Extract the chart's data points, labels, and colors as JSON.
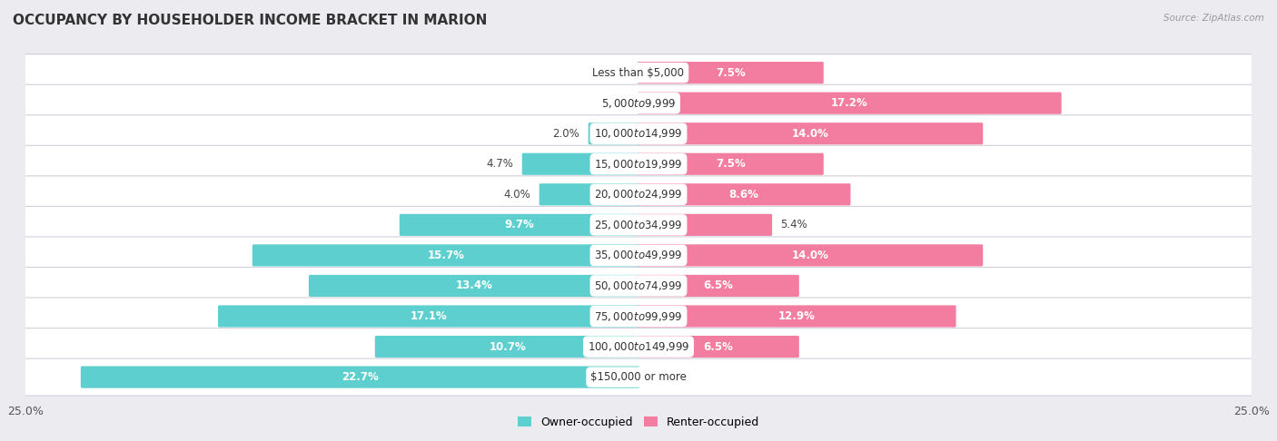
{
  "title": "OCCUPANCY BY HOUSEHOLDER INCOME BRACKET IN MARION",
  "source": "Source: ZipAtlas.com",
  "categories": [
    "Less than $5,000",
    "$5,000 to $9,999",
    "$10,000 to $14,999",
    "$15,000 to $19,999",
    "$20,000 to $24,999",
    "$25,000 to $34,999",
    "$35,000 to $49,999",
    "$50,000 to $74,999",
    "$75,000 to $99,999",
    "$100,000 to $149,999",
    "$150,000 or more"
  ],
  "owner_values": [
    0.0,
    0.0,
    2.0,
    4.7,
    4.0,
    9.7,
    15.7,
    13.4,
    17.1,
    10.7,
    22.7
  ],
  "renter_values": [
    7.5,
    17.2,
    14.0,
    7.5,
    8.6,
    5.4,
    14.0,
    6.5,
    12.9,
    6.5,
    0.0
  ],
  "owner_color": "#5ecfcf",
  "renter_color": "#f27da0",
  "xlim": 25.0,
  "background_color": "#ebebf0",
  "bar_background_color": "#ffffff",
  "bar_height": 0.62,
  "label_fontsize": 8.5,
  "title_fontsize": 11,
  "legend_fontsize": 9,
  "axis_label_fontsize": 9,
  "inside_label_threshold": 5.5,
  "legend_labels": [
    "Owner-occupied",
    "Renter-occupied"
  ]
}
